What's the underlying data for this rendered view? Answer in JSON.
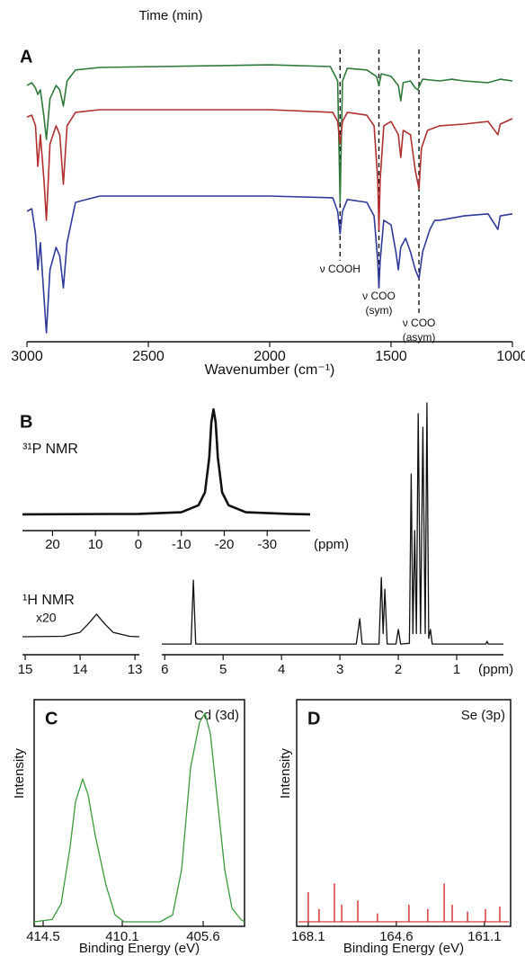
{
  "chart_data": [
    {
      "type": "line",
      "title": "Time (min)",
      "panel": "A",
      "xlabel": "Wavenumber (cm⁻¹)",
      "xlim": [
        3000,
        1000
      ],
      "ylim": [
        0,
        100
      ],
      "xticks": [
        3000,
        2500,
        2000,
        1500,
        1000
      ],
      "annotations": [
        {
          "x": 1710,
          "text": [
            "ν COOH"
          ]
        },
        {
          "x": 1550,
          "text": [
            "ν COO",
            "(sym)"
          ]
        },
        {
          "x": 1385,
          "text": [
            "ν COO",
            "(asym)"
          ]
        }
      ],
      "series": [
        {
          "color": "#2f7a3a",
          "x": [
            3000,
            2980,
            2965,
            2955,
            2945,
            2930,
            2920,
            2905,
            2880,
            2865,
            2850,
            2835,
            2800,
            2700,
            2000,
            1750,
            1720,
            1710,
            1700,
            1680,
            1600,
            1560,
            1550,
            1540,
            1500,
            1470,
            1460,
            1450,
            1420,
            1400,
            1390,
            1370,
            1300,
            1250,
            1200,
            1100,
            1050,
            1000
          ],
          "values": [
            85.9,
            86.9,
            85,
            82.8,
            84.4,
            75,
            67.2,
            81.3,
            85.9,
            84.4,
            78.8,
            87.5,
            91.3,
            92.2,
            93.1,
            92.5,
            87.5,
            45.3,
            87.5,
            91.9,
            91.3,
            89.1,
            85.9,
            90,
            89.1,
            85.9,
            80.6,
            86.9,
            87.5,
            85,
            84.4,
            88.1,
            87.5,
            88.1,
            87.5,
            86.9,
            88.1,
            87.5
          ]
        },
        {
          "color": "#b03030",
          "x": [
            3000,
            2980,
            2965,
            2955,
            2945,
            2930,
            2920,
            2905,
            2880,
            2865,
            2850,
            2835,
            2800,
            2700,
            2000,
            1740,
            1720,
            1710,
            1700,
            1680,
            1600,
            1570,
            1555,
            1550,
            1545,
            1530,
            1500,
            1470,
            1460,
            1450,
            1420,
            1400,
            1385,
            1375,
            1350,
            1300,
            1200,
            1100,
            1060,
            1050,
            1000
          ],
          "values": [
            75,
            75.6,
            71.9,
            57.8,
            68.8,
            53.1,
            39.1,
            65.6,
            71.9,
            68.8,
            51.6,
            71.9,
            76.6,
            77.5,
            77.5,
            76.6,
            73.4,
            65.6,
            73.4,
            76.6,
            75.6,
            71.9,
            53.1,
            35.9,
            53.1,
            71.9,
            73.4,
            68.8,
            60.9,
            70.3,
            68.8,
            56.3,
            50,
            64.1,
            70.3,
            71.9,
            72.5,
            73.4,
            68.8,
            72.5,
            74.4
          ]
        },
        {
          "color": "#2f3a9a",
          "x": [
            3000,
            2980,
            2965,
            2955,
            2945,
            2930,
            2920,
            2905,
            2880,
            2865,
            2850,
            2835,
            2800,
            2700,
            2000,
            1740,
            1720,
            1710,
            1700,
            1680,
            1600,
            1570,
            1555,
            1550,
            1545,
            1530,
            1500,
            1480,
            1470,
            1460,
            1440,
            1420,
            1400,
            1385,
            1370,
            1340,
            1320,
            1300,
            1200,
            1100,
            1060,
            1050,
            1000
          ],
          "values": [
            42.2,
            43.1,
            34.4,
            21.9,
            31.3,
            12.5,
            0,
            21.9,
            29.7,
            26.6,
            15.6,
            31.3,
            45.3,
            47.5,
            47.5,
            46.9,
            42.2,
            34.4,
            42.2,
            46.3,
            45.3,
            40.6,
            25,
            15.6,
            25,
            39.1,
            37.5,
            28.1,
            21.9,
            29.7,
            32.8,
            28.1,
            21.9,
            18.8,
            28.1,
            35.9,
            39.1,
            39.1,
            40.6,
            41.3,
            35.9,
            40.6,
            41.3
          ]
        }
      ]
    },
    {
      "type": "line",
      "panel": "B",
      "label": "³¹P NMR",
      "xlabel": "(ppm)",
      "color": "#111111",
      "xlim": [
        27,
        -40
      ],
      "ylim": [
        0,
        100
      ],
      "xticks": [
        20,
        10,
        0,
        -10,
        -20,
        -30
      ],
      "x": [
        27,
        0,
        -10,
        -14,
        -15.5,
        -16.5,
        -17,
        -17.5,
        -18,
        -18.5,
        -19.5,
        -21,
        -25,
        -35,
        -40
      ],
      "values": [
        6.2,
        6.6,
        8,
        14,
        25,
        55,
        85,
        96,
        85,
        55,
        25,
        14,
        8,
        6.6,
        6.2
      ]
    },
    {
      "type": "line",
      "label": "¹H NMR",
      "annotation": "x20",
      "color": "#111111",
      "xlim": [
        15.05,
        12.92
      ],
      "ylim": [
        0,
        100
      ],
      "xticks": [
        15,
        14,
        13
      ],
      "x": [
        15.05,
        14.3,
        14.0,
        13.85,
        13.7,
        13.55,
        13.4,
        13.1,
        12.92
      ],
      "values": [
        3.7,
        3.9,
        5.5,
        9,
        13,
        9,
        5.5,
        3.9,
        3.7
      ]
    },
    {
      "type": "line",
      "xlabel": "(ppm)",
      "color": "#111111",
      "xlim": [
        6.05,
        0.2
      ],
      "ylim": [
        0,
        100
      ],
      "xticks": [
        6,
        5,
        4,
        3,
        2,
        1
      ],
      "x": [
        6.05,
        5.55,
        5.51,
        5.47,
        2.72,
        2.66,
        2.62,
        2.33,
        2.29,
        2.26,
        2.23,
        2.19,
        2.04,
        2.0,
        1.96,
        1.81,
        1.78,
        1.75,
        1.72,
        1.69,
        1.66,
        1.62,
        1.58,
        1.54,
        1.51,
        1.48,
        1.45,
        1.42,
        0.5,
        0.48,
        0.46,
        0.2
      ],
      "values": [
        0.7,
        0.7,
        27,
        0.7,
        0.7,
        11.1,
        0.7,
        0.7,
        28.1,
        5,
        23.3,
        0.7,
        0.7,
        6.7,
        0.7,
        1,
        70.7,
        5,
        47.4,
        5,
        95.6,
        5,
        90,
        5,
        100,
        3,
        6.7,
        0.7,
        0.7,
        1.8,
        0.7,
        0.7
      ]
    },
    {
      "type": "line",
      "panel": "C",
      "title": "Cd (3d)",
      "ylabel": "Intensity",
      "xlabel": "Binding Energy (eV)",
      "color": "#3a9a3a",
      "xlim": [
        415,
        403.3
      ],
      "ylim": [
        0,
        100
      ],
      "xticks": [
        414.5,
        410.1,
        405.6
      ],
      "x": [
        415,
        414,
        413.5,
        413,
        412.7,
        412.3,
        412,
        411.6,
        411,
        410.5,
        410,
        408,
        407.3,
        406.8,
        406.3,
        405.8,
        405.5,
        405.2,
        404.8,
        404.4,
        404,
        403.5,
        403.3
      ],
      "values": [
        2,
        3,
        10,
        35,
        55,
        65,
        58,
        40,
        18,
        5,
        2,
        2,
        5,
        25,
        70,
        90,
        94,
        85,
        55,
        25,
        8,
        3,
        2
      ]
    },
    {
      "type": "stem",
      "panel": "D",
      "title": "Se (3p)",
      "ylabel": "Intensity",
      "xlabel": "Binding Energy (eV)",
      "color": "#d42a2a",
      "xlim": [
        168.56,
        160.06
      ],
      "ylim": [
        -2,
        98
      ],
      "xticks": [
        168.1,
        164.6,
        161.1
      ],
      "x": [
        168.1,
        167.67,
        167.06,
        166.77,
        166.13,
        165.35,
        164.1,
        163.35,
        162.7,
        162.38,
        161.77,
        161.06,
        160.49
      ],
      "values": [
        13.1,
        5.6,
        16.9,
        7.5,
        9.4,
        3.7,
        7.5,
        5.6,
        16.9,
        7.5,
        4.5,
        5.6,
        6.7
      ]
    }
  ]
}
